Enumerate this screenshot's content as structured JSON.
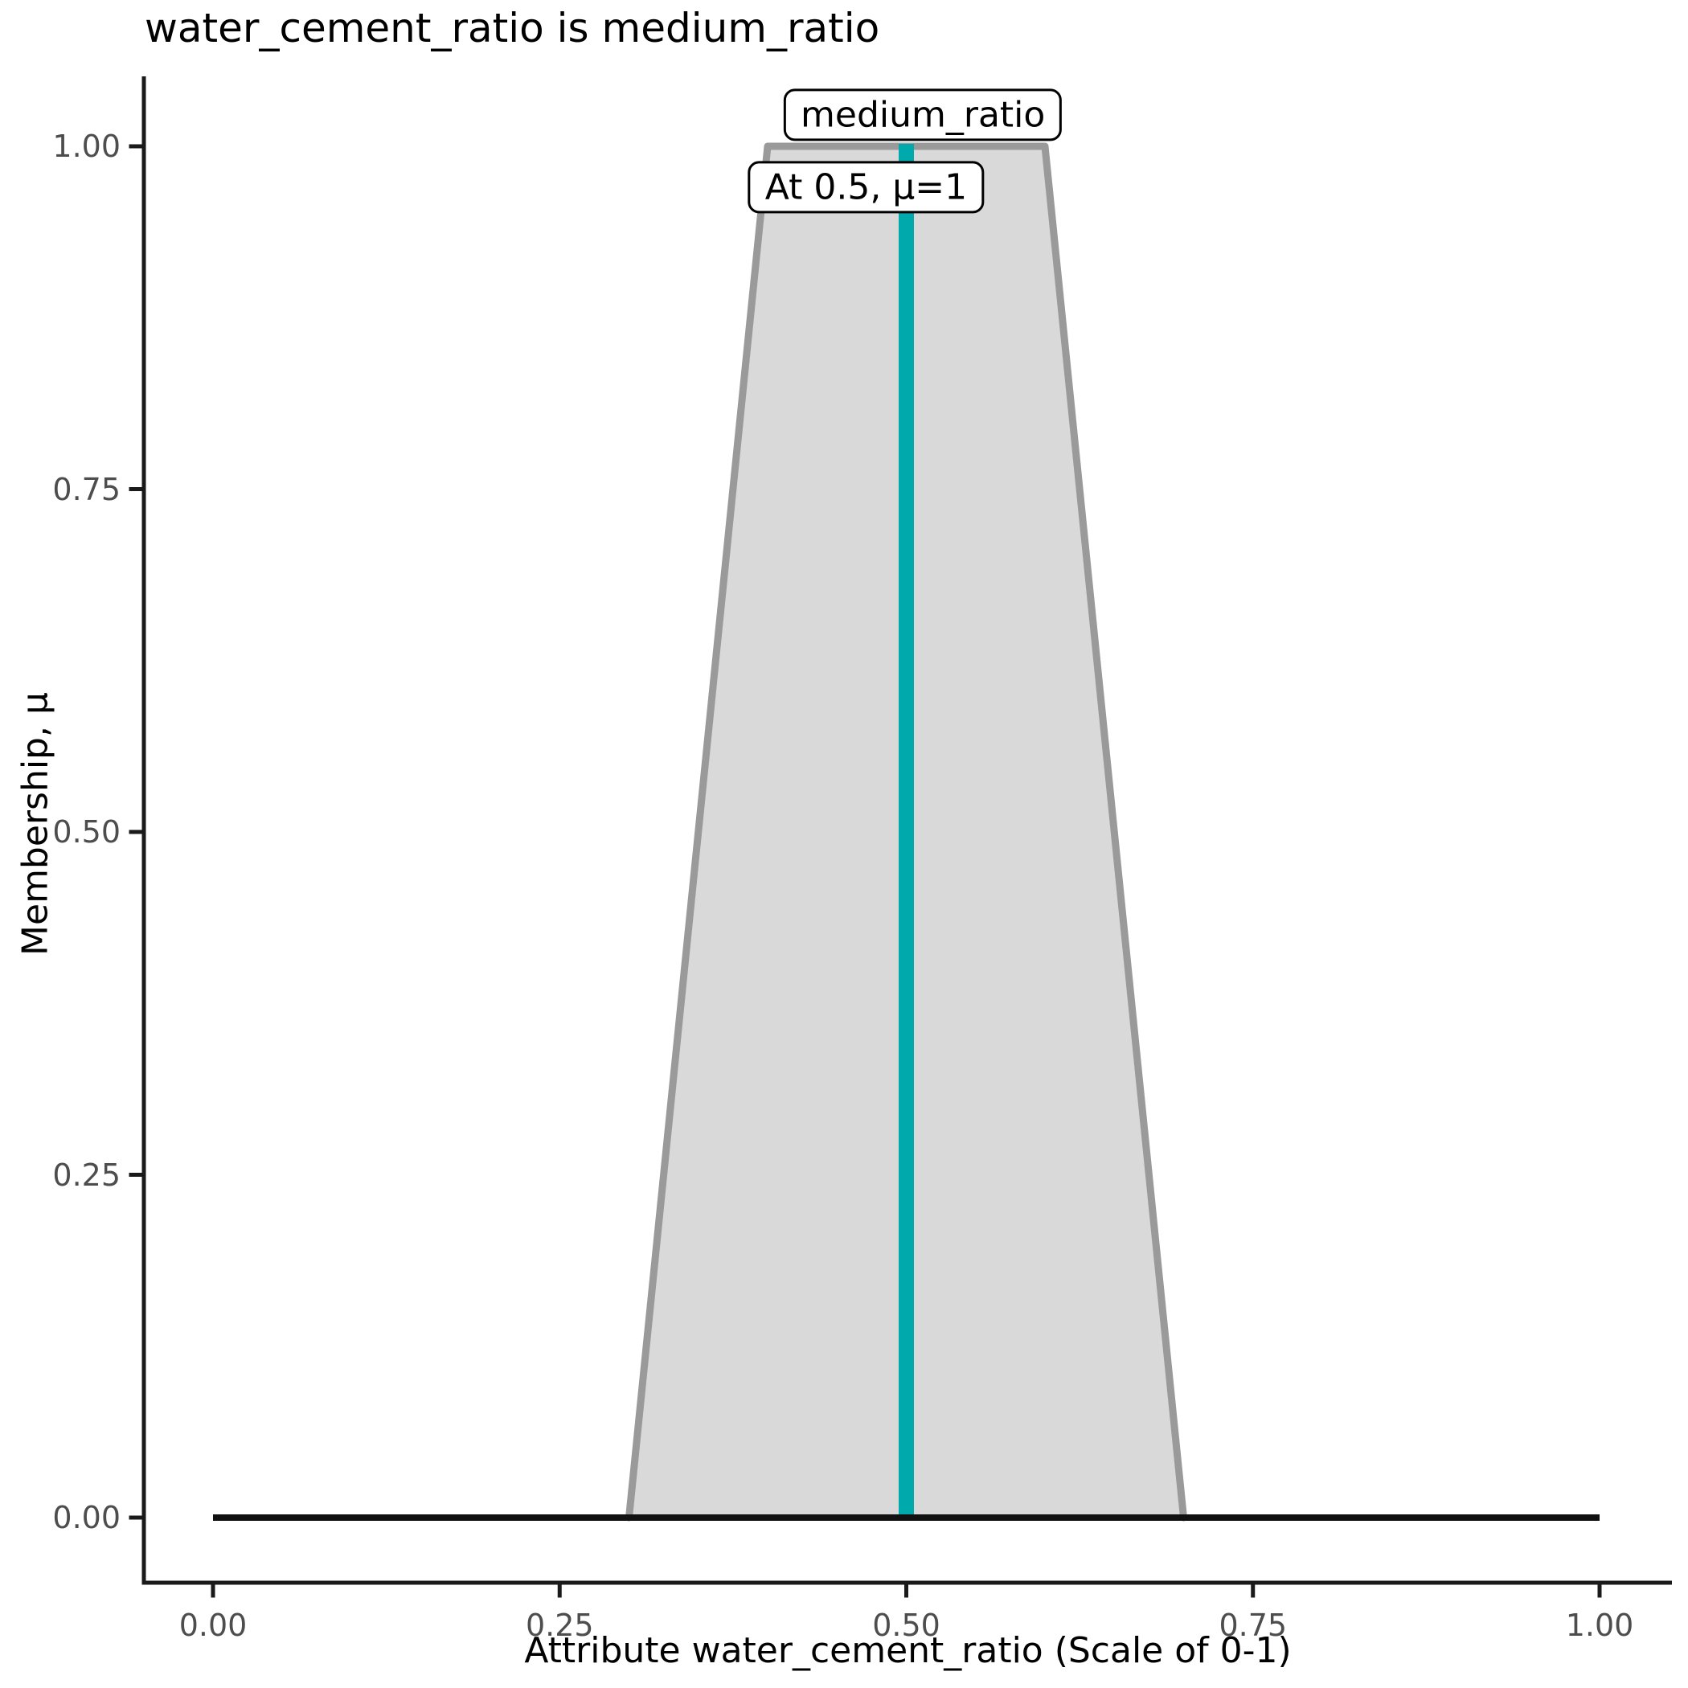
{
  "chart_data": {
    "type": "area",
    "title": "water_cement_ratio is medium_ratio",
    "xlabel": "Attribute water_cement_ratio (Scale of 0-1)",
    "ylabel": "Membership, μ",
    "xlim": [
      0,
      1
    ],
    "ylim": [
      0,
      1
    ],
    "grid": false,
    "legend": false,
    "x_ticks": [
      {
        "value": 0.0,
        "label": "0.00"
      },
      {
        "value": 0.25,
        "label": "0.25"
      },
      {
        "value": 0.5,
        "label": "0.50"
      },
      {
        "value": 0.75,
        "label": "0.75"
      },
      {
        "value": 1.0,
        "label": "1.00"
      }
    ],
    "y_ticks": [
      {
        "value": 0.0,
        "label": "0.00"
      },
      {
        "value": 0.25,
        "label": "0.25"
      },
      {
        "value": 0.5,
        "label": "0.50"
      },
      {
        "value": 0.75,
        "label": "0.75"
      },
      {
        "value": 1.0,
        "label": "1.00"
      }
    ],
    "membership_function": {
      "name": "medium_ratio",
      "shape": "trapezoid",
      "vertices": [
        {
          "x": 0.3,
          "mu": 0
        },
        {
          "x": 0.4,
          "mu": 1
        },
        {
          "x": 0.6,
          "mu": 1
        },
        {
          "x": 0.7,
          "mu": 0
        }
      ]
    },
    "baseline": {
      "x_start": 0.0,
      "x_end": 1.0,
      "mu": 0.0
    },
    "query_line": {
      "x": 0.5,
      "mu_top": 1.0
    },
    "annotations": [
      {
        "id": "set-name",
        "text": "medium_ratio",
        "x": 0.512,
        "mu": 1.023
      },
      {
        "id": "query-readout",
        "text": "At 0.5, μ=1",
        "x": 0.471,
        "mu": 0.97
      }
    ],
    "colors": {
      "fill": "#d9d9d9",
      "edge": "#9a9a9a",
      "query": "#00a9ac",
      "baseline": "#111111",
      "axis": "#1a1a1a",
      "tick_label": "#4d4d4d",
      "text": "#000000",
      "background": "#ffffff",
      "annotation_bg": "#ffffff",
      "annotation_border": "#000000"
    }
  }
}
